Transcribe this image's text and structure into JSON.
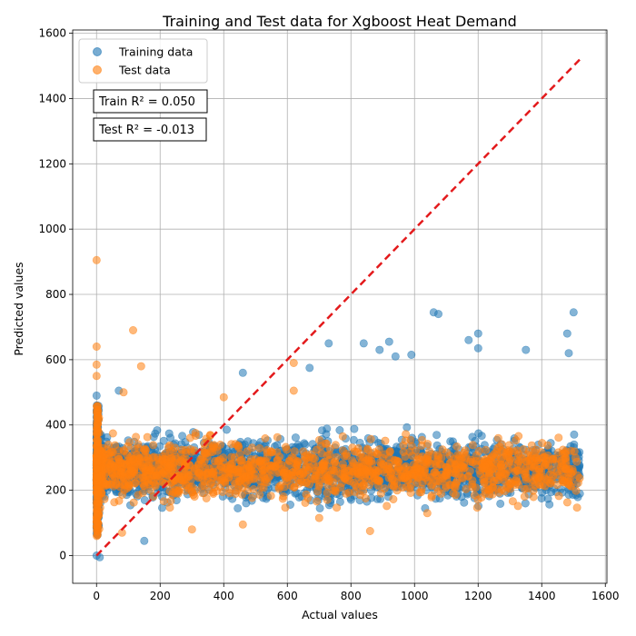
{
  "chart_data": {
    "type": "scatter",
    "title": "Training and Test data for Xgboost Heat Demand",
    "xlabel": "Actual values",
    "ylabel": "Predicted values",
    "xlim": [
      -75,
      1605
    ],
    "ylim": [
      -85,
      1610
    ],
    "x_ticks": [
      0,
      200,
      400,
      600,
      800,
      1000,
      1200,
      1400,
      1600
    ],
    "y_ticks": [
      0,
      200,
      400,
      600,
      800,
      1000,
      1200,
      1400,
      1600
    ],
    "grid": true,
    "legend_position": "top-left",
    "series": [
      {
        "name": "Training data",
        "color": "#1f77b4",
        "dense_band": {
          "x_range": [
            0,
            1520
          ],
          "y_center": 265,
          "y_spread": 75
        },
        "notable_points": [
          [
            0,
            0
          ],
          [
            10,
            -5
          ],
          [
            0,
            490
          ],
          [
            150,
            45
          ],
          [
            70,
            505
          ],
          [
            460,
            560
          ],
          [
            670,
            575
          ],
          [
            730,
            650
          ],
          [
            840,
            650
          ],
          [
            890,
            630
          ],
          [
            920,
            655
          ],
          [
            940,
            610
          ],
          [
            990,
            615
          ],
          [
            1060,
            745
          ],
          [
            1075,
            740
          ],
          [
            1170,
            660
          ],
          [
            1200,
            680
          ],
          [
            1200,
            635
          ],
          [
            1350,
            630
          ],
          [
            1480,
            680
          ],
          [
            1485,
            620
          ],
          [
            1500,
            745
          ]
        ]
      },
      {
        "name": "Test data",
        "color": "#ff7f0e",
        "dense_band": {
          "x_range": [
            0,
            1520
          ],
          "y_center": 262,
          "y_spread": 72
        },
        "notable_points": [
          [
            0,
            905
          ],
          [
            0,
            640
          ],
          [
            0,
            585
          ],
          [
            0,
            550
          ],
          [
            115,
            690
          ],
          [
            140,
            580
          ],
          [
            85,
            500
          ],
          [
            400,
            485
          ],
          [
            620,
            590
          ],
          [
            620,
            505
          ],
          [
            860,
            75
          ],
          [
            460,
            95
          ],
          [
            700,
            115
          ],
          [
            1040,
            130
          ],
          [
            300,
            80
          ],
          [
            80,
            70
          ]
        ]
      },
      {
        "name": "",
        "type": "line",
        "style": "dashed",
        "color": "#e31a1c",
        "x": [
          0,
          1520
        ],
        "y": [
          0,
          1520
        ]
      }
    ],
    "annotations": [
      "Train R² = 0.050",
      "Test R² = -0.013"
    ]
  }
}
